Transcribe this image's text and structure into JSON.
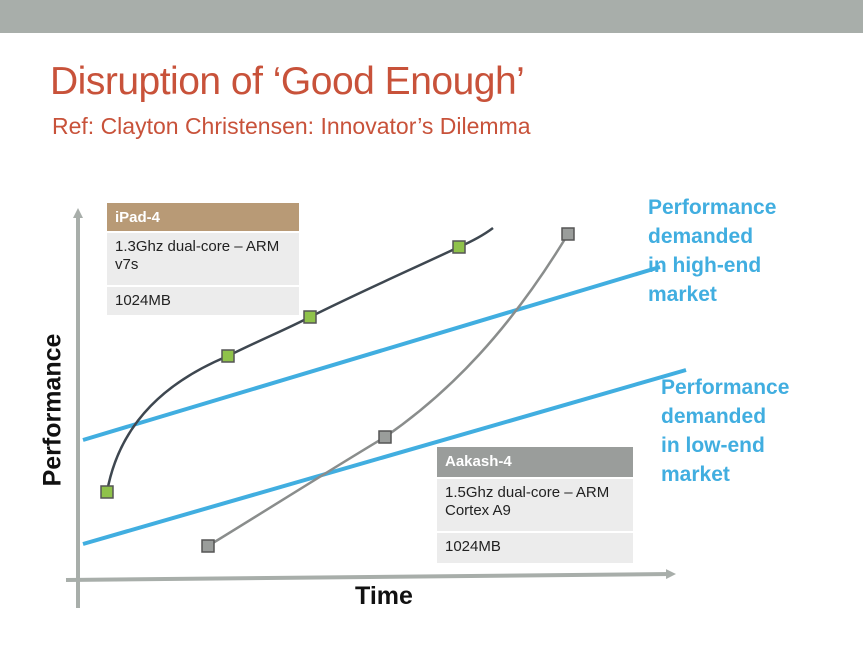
{
  "slide": {
    "title": "Disruption of ‘Good Enough’",
    "subtitle": "Ref: Clayton Christensen: Innovator’s Dilemma"
  },
  "axes": {
    "x_label": "Time",
    "y_label": "Performance"
  },
  "ipad_box": {
    "header": "iPad-4",
    "cpu": "1.3Ghz dual-core – ARM v7s",
    "memory": "1024MB"
  },
  "aakash_box": {
    "header": "Aakash-4",
    "cpu": "1.5Ghz dual-core – ARM Cortex A9",
    "memory": "1024MB"
  },
  "markets": {
    "high_end": {
      "line1": "Performance",
      "line2": "demanded",
      "line3": "in high-end",
      "line4": "market"
    },
    "low_end": {
      "line1": "Performance",
      "line2": "demanded",
      "line3": "in low-end",
      "line4": "market"
    }
  },
  "colors": {
    "title": "#c8523a",
    "market_line": "#41aee0",
    "ipad_curve": "#3e4750",
    "aakash_curve": "#8a8d8c",
    "ipad_marker": "#8fc24a",
    "aakash_marker": "#9a9d9b",
    "axis": "#a8aeaa"
  }
}
